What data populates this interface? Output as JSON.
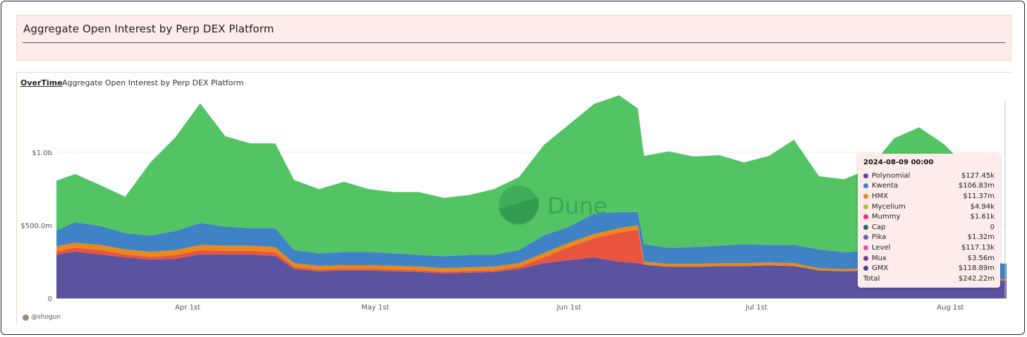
{
  "header": {
    "title": "Aggregate Open Interest by Perp DEX Platform"
  },
  "tab": {
    "label": "OverTime",
    "subtitle": "Aggregate Open Interest by Perp DEX Platform"
  },
  "author": "@shogun",
  "watermark": "Dune",
  "tooltip": {
    "date": "2024-08-09 00:00",
    "rows": [
      {
        "name": "Polynomial",
        "value": "$127.45k",
        "color": "#6a3d9a"
      },
      {
        "name": "Kwenta",
        "value": "$106.83m",
        "color": "#3b7fc4"
      },
      {
        "name": "HMX",
        "value": "$11.37m",
        "color": "#e8891c"
      },
      {
        "name": "Mycelium",
        "value": "$4.94k",
        "color": "#a3c93a"
      },
      {
        "name": "Mummy",
        "value": "$1.61k",
        "color": "#e0307a"
      },
      {
        "name": "Cap",
        "value": "0",
        "color": "#1f6f5f"
      },
      {
        "name": "Pika",
        "value": "$1.32m",
        "color": "#6a5fb8"
      },
      {
        "name": "Level",
        "value": "$117.13k",
        "color": "#d957b0"
      },
      {
        "name": "Mux",
        "value": "$3.56m",
        "color": "#7a3a9a"
      },
      {
        "name": "GMX",
        "value": "$118.89m",
        "color": "#4a3f8c"
      }
    ],
    "total_label": "Total",
    "total_value": "$242.22m"
  },
  "chart_data": {
    "type": "area",
    "stacked": true,
    "x_start": "2024-03-11",
    "x_end": "2024-08-10",
    "x_ticks": [
      {
        "date": "2024-04-01",
        "label": "Apr 1st"
      },
      {
        "date": "2024-05-01",
        "label": "May 1st"
      },
      {
        "date": "2024-06-01",
        "label": "Jun 1st"
      },
      {
        "date": "2024-07-01",
        "label": "Jul 1st"
      },
      {
        "date": "2024-08-01",
        "label": "Aug 1st"
      }
    ],
    "y_ticks": [
      {
        "value": 0,
        "label": "0"
      },
      {
        "value": 500,
        "label": "$500.0m"
      },
      {
        "value": 1000,
        "label": "$1.0b"
      }
    ],
    "ylim": [
      0,
      1400
    ],
    "y_unit": "millions USD",
    "grid": true,
    "legend": "tooltip",
    "series": [
      {
        "name": "GMX",
        "color": "#5b53a0",
        "points": [
          [
            "2024-03-11",
            300
          ],
          [
            "2024-03-14",
            320
          ],
          [
            "2024-03-18",
            300
          ],
          [
            "2024-03-22",
            280
          ],
          [
            "2024-03-26",
            265
          ],
          [
            "2024-03-30",
            270
          ],
          [
            "2024-04-03",
            300
          ],
          [
            "2024-04-07",
            300
          ],
          [
            "2024-04-11",
            300
          ],
          [
            "2024-04-15",
            290
          ],
          [
            "2024-04-18",
            200
          ],
          [
            "2024-04-22",
            185
          ],
          [
            "2024-04-26",
            190
          ],
          [
            "2024-04-30",
            190
          ],
          [
            "2024-05-04",
            185
          ],
          [
            "2024-05-08",
            180
          ],
          [
            "2024-05-12",
            170
          ],
          [
            "2024-05-16",
            175
          ],
          [
            "2024-05-20",
            180
          ],
          [
            "2024-05-24",
            200
          ],
          [
            "2024-05-28",
            240
          ],
          [
            "2024-06-01",
            260
          ],
          [
            "2024-06-05",
            280
          ],
          [
            "2024-06-09",
            250
          ],
          [
            "2024-06-12",
            240
          ],
          [
            "2024-06-13",
            230
          ],
          [
            "2024-06-17",
            215
          ],
          [
            "2024-06-21",
            215
          ],
          [
            "2024-06-25",
            220
          ],
          [
            "2024-06-29",
            220
          ],
          [
            "2024-07-03",
            225
          ],
          [
            "2024-07-07",
            220
          ],
          [
            "2024-07-11",
            190
          ],
          [
            "2024-07-15",
            185
          ],
          [
            "2024-07-19",
            190
          ],
          [
            "2024-07-23",
            200
          ],
          [
            "2024-07-27",
            205
          ],
          [
            "2024-07-31",
            200
          ],
          [
            "2024-08-04",
            160
          ],
          [
            "2024-08-08",
            125
          ],
          [
            "2024-08-10",
            120
          ]
        ]
      },
      {
        "name": "Level",
        "color": "#e8543e",
        "points": [
          [
            "2024-03-11",
            20
          ],
          [
            "2024-03-14",
            25
          ],
          [
            "2024-03-18",
            30
          ],
          [
            "2024-03-22",
            20
          ],
          [
            "2024-03-26",
            18
          ],
          [
            "2024-03-30",
            25
          ],
          [
            "2024-04-03",
            30
          ],
          [
            "2024-04-07",
            25
          ],
          [
            "2024-04-11",
            25
          ],
          [
            "2024-04-15",
            25
          ],
          [
            "2024-04-18",
            15
          ],
          [
            "2024-04-22",
            12
          ],
          [
            "2024-04-26",
            12
          ],
          [
            "2024-04-30",
            12
          ],
          [
            "2024-05-04",
            12
          ],
          [
            "2024-05-08",
            12
          ],
          [
            "2024-05-12",
            12
          ],
          [
            "2024-05-16",
            12
          ],
          [
            "2024-05-20",
            12
          ],
          [
            "2024-05-24",
            15
          ],
          [
            "2024-05-28",
            40
          ],
          [
            "2024-06-01",
            90
          ],
          [
            "2024-06-05",
            130
          ],
          [
            "2024-06-09",
            200
          ],
          [
            "2024-06-12",
            230
          ],
          [
            "2024-06-13",
            0
          ],
          [
            "2024-06-17",
            0
          ],
          [
            "2024-06-21",
            0
          ],
          [
            "2024-06-25",
            0
          ],
          [
            "2024-06-29",
            0
          ],
          [
            "2024-07-03",
            0
          ],
          [
            "2024-07-07",
            0
          ],
          [
            "2024-07-11",
            0
          ],
          [
            "2024-07-15",
            0
          ],
          [
            "2024-07-19",
            0
          ],
          [
            "2024-07-23",
            0
          ],
          [
            "2024-07-27",
            0
          ],
          [
            "2024-07-31",
            0
          ],
          [
            "2024-08-04",
            0
          ],
          [
            "2024-08-08",
            0
          ],
          [
            "2024-08-10",
            0
          ]
        ]
      },
      {
        "name": "HMX",
        "color": "#e8891c",
        "points": [
          [
            "2024-03-11",
            35
          ],
          [
            "2024-03-14",
            35
          ],
          [
            "2024-03-18",
            35
          ],
          [
            "2024-03-22",
            35
          ],
          [
            "2024-03-26",
            35
          ],
          [
            "2024-03-30",
            35
          ],
          [
            "2024-04-03",
            35
          ],
          [
            "2024-04-07",
            35
          ],
          [
            "2024-04-11",
            35
          ],
          [
            "2024-04-15",
            35
          ],
          [
            "2024-04-18",
            25
          ],
          [
            "2024-04-22",
            25
          ],
          [
            "2024-04-26",
            25
          ],
          [
            "2024-04-30",
            25
          ],
          [
            "2024-05-04",
            25
          ],
          [
            "2024-05-08",
            25
          ],
          [
            "2024-05-12",
            25
          ],
          [
            "2024-05-16",
            25
          ],
          [
            "2024-05-20",
            25
          ],
          [
            "2024-05-24",
            25
          ],
          [
            "2024-05-28",
            30
          ],
          [
            "2024-06-01",
            30
          ],
          [
            "2024-06-05",
            30
          ],
          [
            "2024-06-09",
            30
          ],
          [
            "2024-06-12",
            30
          ],
          [
            "2024-06-13",
            20
          ],
          [
            "2024-06-17",
            20
          ],
          [
            "2024-06-21",
            20
          ],
          [
            "2024-06-25",
            20
          ],
          [
            "2024-06-29",
            20
          ],
          [
            "2024-07-03",
            20
          ],
          [
            "2024-07-07",
            20
          ],
          [
            "2024-07-11",
            15
          ],
          [
            "2024-07-15",
            15
          ],
          [
            "2024-07-19",
            15
          ],
          [
            "2024-07-23",
            15
          ],
          [
            "2024-07-27",
            15
          ],
          [
            "2024-07-31",
            15
          ],
          [
            "2024-08-04",
            12
          ],
          [
            "2024-08-08",
            11
          ],
          [
            "2024-08-10",
            11
          ]
        ]
      },
      {
        "name": "Kwenta",
        "color": "#3f82c6",
        "points": [
          [
            "2024-03-11",
            110
          ],
          [
            "2024-03-14",
            140
          ],
          [
            "2024-03-18",
            130
          ],
          [
            "2024-03-22",
            110
          ],
          [
            "2024-03-26",
            110
          ],
          [
            "2024-03-30",
            130
          ],
          [
            "2024-04-03",
            150
          ],
          [
            "2024-04-07",
            130
          ],
          [
            "2024-04-11",
            120
          ],
          [
            "2024-04-15",
            130
          ],
          [
            "2024-04-18",
            90
          ],
          [
            "2024-04-22",
            85
          ],
          [
            "2024-04-26",
            90
          ],
          [
            "2024-04-30",
            90
          ],
          [
            "2024-05-04",
            85
          ],
          [
            "2024-05-08",
            80
          ],
          [
            "2024-05-12",
            80
          ],
          [
            "2024-05-16",
            85
          ],
          [
            "2024-05-20",
            80
          ],
          [
            "2024-05-24",
            90
          ],
          [
            "2024-05-28",
            120
          ],
          [
            "2024-06-01",
            110
          ],
          [
            "2024-06-05",
            140
          ],
          [
            "2024-06-09",
            110
          ],
          [
            "2024-06-12",
            90
          ],
          [
            "2024-06-13",
            120
          ],
          [
            "2024-06-17",
            110
          ],
          [
            "2024-06-21",
            115
          ],
          [
            "2024-06-25",
            120
          ],
          [
            "2024-06-29",
            130
          ],
          [
            "2024-07-03",
            120
          ],
          [
            "2024-07-07",
            125
          ],
          [
            "2024-07-11",
            130
          ],
          [
            "2024-07-15",
            115
          ],
          [
            "2024-07-19",
            120
          ],
          [
            "2024-07-23",
            140
          ],
          [
            "2024-07-27",
            150
          ],
          [
            "2024-07-31",
            140
          ],
          [
            "2024-08-04",
            130
          ],
          [
            "2024-08-08",
            107
          ],
          [
            "2024-08-10",
            105
          ]
        ]
      },
      {
        "name": "Mux",
        "color": "#52c464",
        "points": [
          [
            "2024-03-11",
            340
          ],
          [
            "2024-03-14",
            330
          ],
          [
            "2024-03-18",
            280
          ],
          [
            "2024-03-22",
            250
          ],
          [
            "2024-03-26",
            500
          ],
          [
            "2024-03-30",
            640
          ],
          [
            "2024-04-03",
            820
          ],
          [
            "2024-04-07",
            620
          ],
          [
            "2024-04-11",
            580
          ],
          [
            "2024-04-15",
            580
          ],
          [
            "2024-04-18",
            480
          ],
          [
            "2024-04-22",
            440
          ],
          [
            "2024-04-26",
            480
          ],
          [
            "2024-04-30",
            430
          ],
          [
            "2024-05-04",
            420
          ],
          [
            "2024-05-08",
            430
          ],
          [
            "2024-05-12",
            400
          ],
          [
            "2024-05-16",
            410
          ],
          [
            "2024-05-20",
            450
          ],
          [
            "2024-05-24",
            500
          ],
          [
            "2024-05-28",
            620
          ],
          [
            "2024-06-01",
            700
          ],
          [
            "2024-06-05",
            750
          ],
          [
            "2024-06-09",
            800
          ],
          [
            "2024-06-12",
            710
          ],
          [
            "2024-06-13",
            605
          ],
          [
            "2024-06-17",
            660
          ],
          [
            "2024-06-21",
            620
          ],
          [
            "2024-06-25",
            620
          ],
          [
            "2024-06-29",
            560
          ],
          [
            "2024-07-03",
            610
          ],
          [
            "2024-07-07",
            720
          ],
          [
            "2024-07-11",
            500
          ],
          [
            "2024-07-15",
            500
          ],
          [
            "2024-07-19",
            560
          ],
          [
            "2024-07-23",
            740
          ],
          [
            "2024-07-27",
            800
          ],
          [
            "2024-07-31",
            700
          ],
          [
            "2024-08-04",
            580
          ],
          [
            "2024-08-08",
            0
          ],
          [
            "2024-08-10",
            0
          ]
        ]
      }
    ]
  }
}
